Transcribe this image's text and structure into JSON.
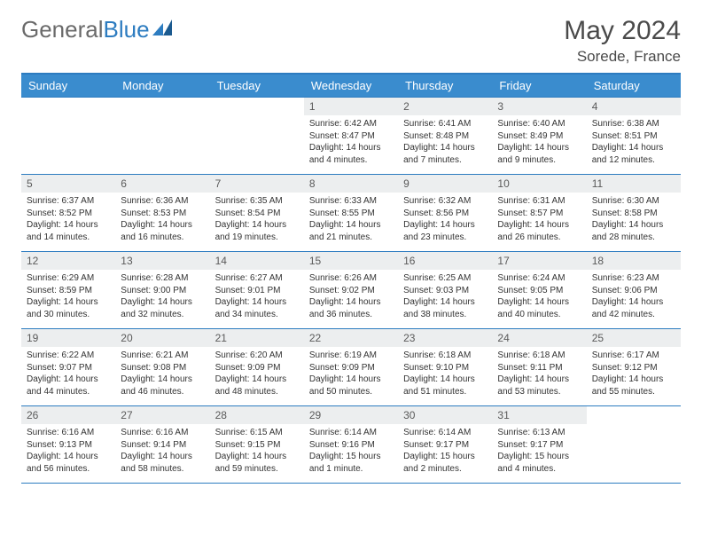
{
  "brand": {
    "part1": "General",
    "part2": "Blue"
  },
  "title": "May 2024",
  "location": "Sorede, France",
  "colors": {
    "header_bg": "#3a8cce",
    "border": "#2d7cc0",
    "daynum_bg": "#eceeef",
    "text": "#333333",
    "title_text": "#4a4a4a"
  },
  "weekdays": [
    "Sunday",
    "Monday",
    "Tuesday",
    "Wednesday",
    "Thursday",
    "Friday",
    "Saturday"
  ],
  "weeks": [
    [
      null,
      null,
      null,
      {
        "n": "1",
        "sr": "6:42 AM",
        "ss": "8:47 PM",
        "dl": "14 hours and 4 minutes."
      },
      {
        "n": "2",
        "sr": "6:41 AM",
        "ss": "8:48 PM",
        "dl": "14 hours and 7 minutes."
      },
      {
        "n": "3",
        "sr": "6:40 AM",
        "ss": "8:49 PM",
        "dl": "14 hours and 9 minutes."
      },
      {
        "n": "4",
        "sr": "6:38 AM",
        "ss": "8:51 PM",
        "dl": "14 hours and 12 minutes."
      }
    ],
    [
      {
        "n": "5",
        "sr": "6:37 AM",
        "ss": "8:52 PM",
        "dl": "14 hours and 14 minutes."
      },
      {
        "n": "6",
        "sr": "6:36 AM",
        "ss": "8:53 PM",
        "dl": "14 hours and 16 minutes."
      },
      {
        "n": "7",
        "sr": "6:35 AM",
        "ss": "8:54 PM",
        "dl": "14 hours and 19 minutes."
      },
      {
        "n": "8",
        "sr": "6:33 AM",
        "ss": "8:55 PM",
        "dl": "14 hours and 21 minutes."
      },
      {
        "n": "9",
        "sr": "6:32 AM",
        "ss": "8:56 PM",
        "dl": "14 hours and 23 minutes."
      },
      {
        "n": "10",
        "sr": "6:31 AM",
        "ss": "8:57 PM",
        "dl": "14 hours and 26 minutes."
      },
      {
        "n": "11",
        "sr": "6:30 AM",
        "ss": "8:58 PM",
        "dl": "14 hours and 28 minutes."
      }
    ],
    [
      {
        "n": "12",
        "sr": "6:29 AM",
        "ss": "8:59 PM",
        "dl": "14 hours and 30 minutes."
      },
      {
        "n": "13",
        "sr": "6:28 AM",
        "ss": "9:00 PM",
        "dl": "14 hours and 32 minutes."
      },
      {
        "n": "14",
        "sr": "6:27 AM",
        "ss": "9:01 PM",
        "dl": "14 hours and 34 minutes."
      },
      {
        "n": "15",
        "sr": "6:26 AM",
        "ss": "9:02 PM",
        "dl": "14 hours and 36 minutes."
      },
      {
        "n": "16",
        "sr": "6:25 AM",
        "ss": "9:03 PM",
        "dl": "14 hours and 38 minutes."
      },
      {
        "n": "17",
        "sr": "6:24 AM",
        "ss": "9:05 PM",
        "dl": "14 hours and 40 minutes."
      },
      {
        "n": "18",
        "sr": "6:23 AM",
        "ss": "9:06 PM",
        "dl": "14 hours and 42 minutes."
      }
    ],
    [
      {
        "n": "19",
        "sr": "6:22 AM",
        "ss": "9:07 PM",
        "dl": "14 hours and 44 minutes."
      },
      {
        "n": "20",
        "sr": "6:21 AM",
        "ss": "9:08 PM",
        "dl": "14 hours and 46 minutes."
      },
      {
        "n": "21",
        "sr": "6:20 AM",
        "ss": "9:09 PM",
        "dl": "14 hours and 48 minutes."
      },
      {
        "n": "22",
        "sr": "6:19 AM",
        "ss": "9:09 PM",
        "dl": "14 hours and 50 minutes."
      },
      {
        "n": "23",
        "sr": "6:18 AM",
        "ss": "9:10 PM",
        "dl": "14 hours and 51 minutes."
      },
      {
        "n": "24",
        "sr": "6:18 AM",
        "ss": "9:11 PM",
        "dl": "14 hours and 53 minutes."
      },
      {
        "n": "25",
        "sr": "6:17 AM",
        "ss": "9:12 PM",
        "dl": "14 hours and 55 minutes."
      }
    ],
    [
      {
        "n": "26",
        "sr": "6:16 AM",
        "ss": "9:13 PM",
        "dl": "14 hours and 56 minutes."
      },
      {
        "n": "27",
        "sr": "6:16 AM",
        "ss": "9:14 PM",
        "dl": "14 hours and 58 minutes."
      },
      {
        "n": "28",
        "sr": "6:15 AM",
        "ss": "9:15 PM",
        "dl": "14 hours and 59 minutes."
      },
      {
        "n": "29",
        "sr": "6:14 AM",
        "ss": "9:16 PM",
        "dl": "15 hours and 1 minute."
      },
      {
        "n": "30",
        "sr": "6:14 AM",
        "ss": "9:17 PM",
        "dl": "15 hours and 2 minutes."
      },
      {
        "n": "31",
        "sr": "6:13 AM",
        "ss": "9:17 PM",
        "dl": "15 hours and 4 minutes."
      },
      null
    ]
  ],
  "labels": {
    "sunrise": "Sunrise:",
    "sunset": "Sunset:",
    "daylight": "Daylight:"
  }
}
